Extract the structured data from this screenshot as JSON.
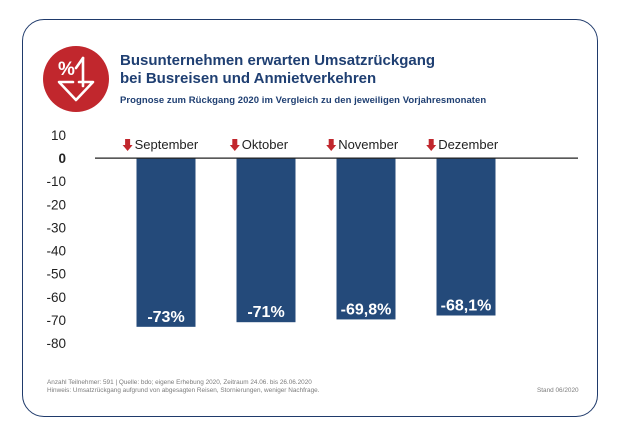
{
  "header": {
    "title_line1": "Busunternehmen erwarten Umsatzrückgang",
    "title_line2": "bei Busreisen und Anmietverkehren",
    "subtitle": "Prognose zum Rückgang 2020 im Vergleich zu den jeweiligen Vorjahresmonaten",
    "logo_icon": "percent-down-arrow-icon",
    "logo_color": "#c1272d"
  },
  "chart_data": {
    "type": "bar",
    "categories": [
      "September",
      "Oktober",
      "November",
      "Dezember"
    ],
    "values": [
      -73,
      -71,
      -69.8,
      -68.1
    ],
    "value_labels": [
      "-73%",
      "-71%",
      "-69,8%",
      "-68,1%"
    ],
    "yticks": [
      10,
      0,
      -10,
      -20,
      -30,
      -40,
      -50,
      -60,
      -70,
      -80
    ],
    "ylim": [
      -80,
      10
    ],
    "title": "Busunternehmen erwarten Umsatzrückgang bei Busreisen und Anmietverkehren",
    "xlabel": "",
    "ylabel": "",
    "bar_color": "#244a7a",
    "arrow_color": "#c1272d",
    "category_marker_icon": "down-arrow-icon",
    "grid": false
  },
  "footer": {
    "note1": "Anzahl Teilnehmer: 591 | Quelle: bdo; eigene Erhebung 2020, Zeitraum 24.06. bis 26.06.2020",
    "note2": "Hinweis: Umsatzrückgang aufgrund von abgesagten Reisen, Stornierungen, weniger Nachfrage.",
    "stand": "Stand 06/2020"
  },
  "colors": {
    "frame": "#1f3a6b",
    "text_dark": "#1f3f72",
    "footnote": "#7c7c7c"
  }
}
